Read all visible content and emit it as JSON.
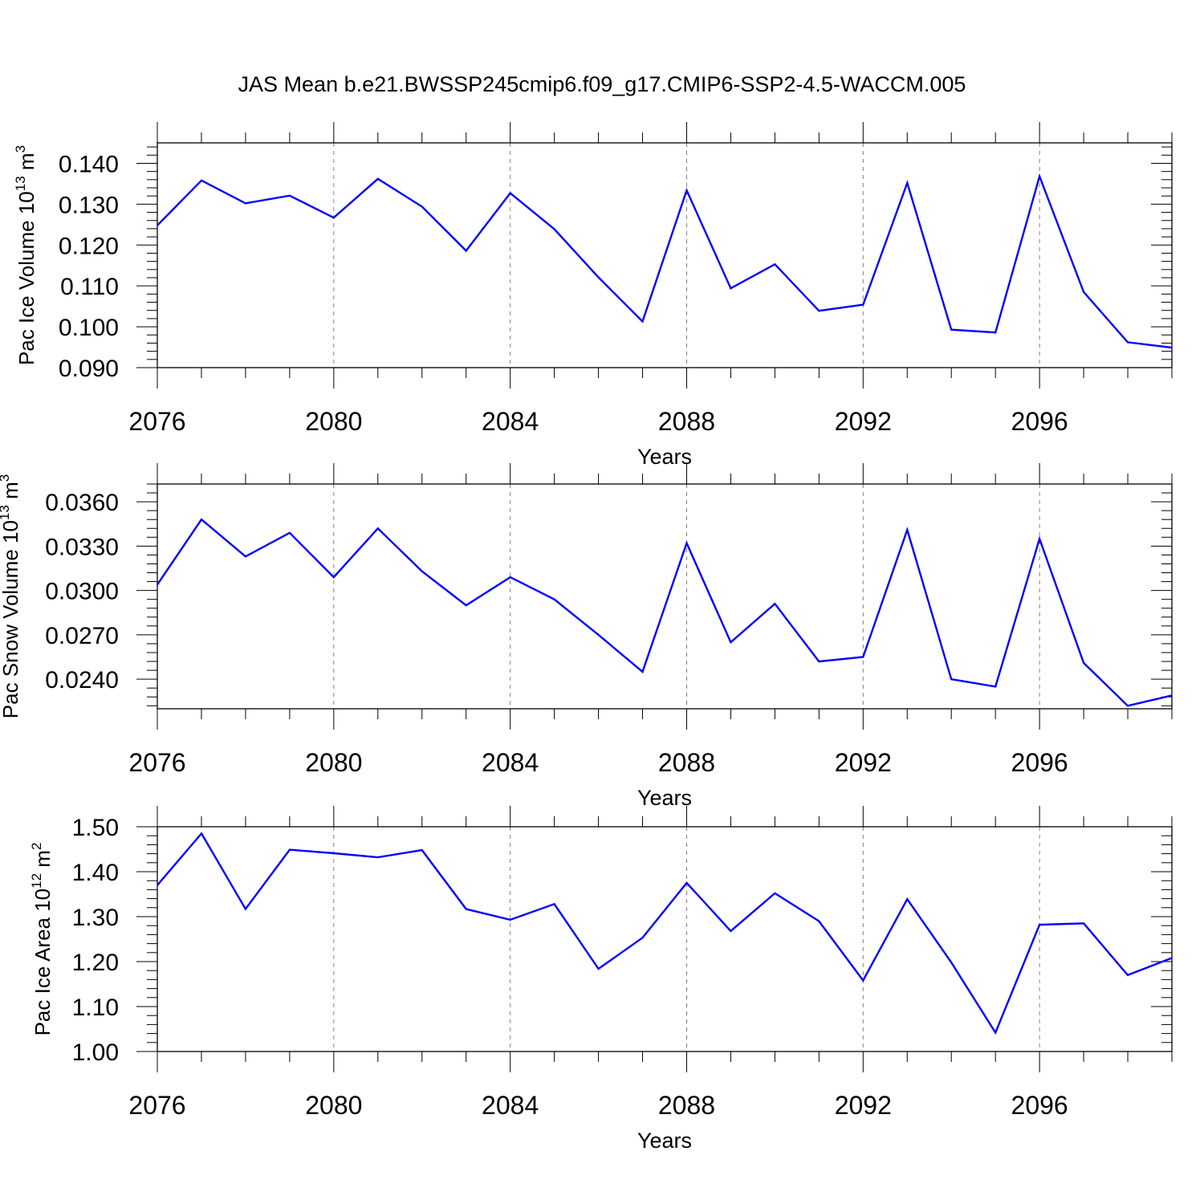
{
  "title": "JAS Mean b.e21.BWSSP245cmip6.f09_g17.CMIP6-SSP2-4.5-WACCM.005",
  "colors": {
    "line": "#0000ff",
    "axis": "#000000",
    "grid": "#808080"
  },
  "chart_data": [
    {
      "type": "line",
      "ylabel": {
        "prefix": "Pac Ice Volume 10",
        "exp": "13",
        "unit": " m",
        "unit_exp": "3"
      },
      "xlabel": "Years",
      "xlim": [
        2076,
        2099
      ],
      "ylim": [
        0.09,
        0.145
      ],
      "xticks": [
        "2076",
        "2080",
        "2084",
        "2088",
        "2092",
        "2096"
      ],
      "yticks": [
        "0.090",
        "0.100",
        "0.110",
        "0.120",
        "0.130",
        "0.140"
      ],
      "grid": "vertical dashed at major x ticks",
      "x": [
        2076,
        2077,
        2078,
        2079,
        2080,
        2081,
        2082,
        2083,
        2084,
        2085,
        2086,
        2087,
        2088,
        2089,
        2090,
        2091,
        2092,
        2093,
        2094,
        2095,
        2096,
        2097,
        2098,
        2099
      ],
      "series": [
        {
          "values": [
            0.1248,
            0.1358,
            0.1302,
            0.1321,
            0.1267,
            0.1362,
            0.1294,
            0.1186,
            0.1327,
            0.1239,
            0.1121,
            0.1013,
            0.1334,
            0.1094,
            0.1153,
            0.1039,
            0.1054,
            0.1352,
            0.0993,
            0.0986,
            0.1368,
            0.1085,
            0.0962,
            0.0949
          ]
        }
      ]
    },
    {
      "type": "line",
      "ylabel": {
        "prefix": "Pac Snow Volume 10",
        "exp": "13",
        "unit": " m",
        "unit_exp": "3"
      },
      "xlabel": "Years",
      "xlim": [
        2076,
        2099
      ],
      "ylim": [
        0.022,
        0.0372
      ],
      "xticks": [
        "2076",
        "2080",
        "2084",
        "2088",
        "2092",
        "2096"
      ],
      "yticks": [
        "0.0240",
        "0.0270",
        "0.0300",
        "0.0330",
        "0.0360"
      ],
      "grid": "vertical dashed at major x ticks",
      "x": [
        2076,
        2077,
        2078,
        2079,
        2080,
        2081,
        2082,
        2083,
        2084,
        2085,
        2086,
        2087,
        2088,
        2089,
        2090,
        2091,
        2092,
        2093,
        2094,
        2095,
        2096,
        2097,
        2098,
        2099
      ],
      "series": [
        {
          "values": [
            0.0304,
            0.0348,
            0.0323,
            0.0339,
            0.0309,
            0.0342,
            0.0313,
            0.029,
            0.0309,
            0.0294,
            0.027,
            0.0245,
            0.0332,
            0.0265,
            0.0291,
            0.0252,
            0.0255,
            0.0341,
            0.024,
            0.0235,
            0.0335,
            0.0251,
            0.0222,
            0.0229
          ]
        }
      ]
    },
    {
      "type": "line",
      "ylabel": {
        "prefix": "Pac Ice Area 10",
        "exp": "12",
        "unit": " m",
        "unit_exp": "2"
      },
      "xlabel": "Years",
      "xlim": [
        2076,
        2099
      ],
      "ylim": [
        1.0,
        1.5
      ],
      "xticks": [
        "2076",
        "2080",
        "2084",
        "2088",
        "2092",
        "2096"
      ],
      "yticks": [
        "1.00",
        "1.10",
        "1.20",
        "1.30",
        "1.40",
        "1.50"
      ],
      "grid": "vertical dashed at major x ticks",
      "x": [
        2076,
        2077,
        2078,
        2079,
        2080,
        2081,
        2082,
        2083,
        2084,
        2085,
        2086,
        2087,
        2088,
        2089,
        2090,
        2091,
        2092,
        2093,
        2094,
        2095,
        2096,
        2097,
        2098,
        2099
      ],
      "series": [
        {
          "values": [
            1.37,
            1.485,
            1.317,
            1.449,
            1.441,
            1.432,
            1.448,
            1.317,
            1.293,
            1.328,
            1.184,
            1.253,
            1.375,
            1.268,
            1.352,
            1.29,
            1.158,
            1.339,
            1.198,
            1.042,
            1.282,
            1.285,
            1.17,
            1.208
          ]
        }
      ]
    }
  ]
}
